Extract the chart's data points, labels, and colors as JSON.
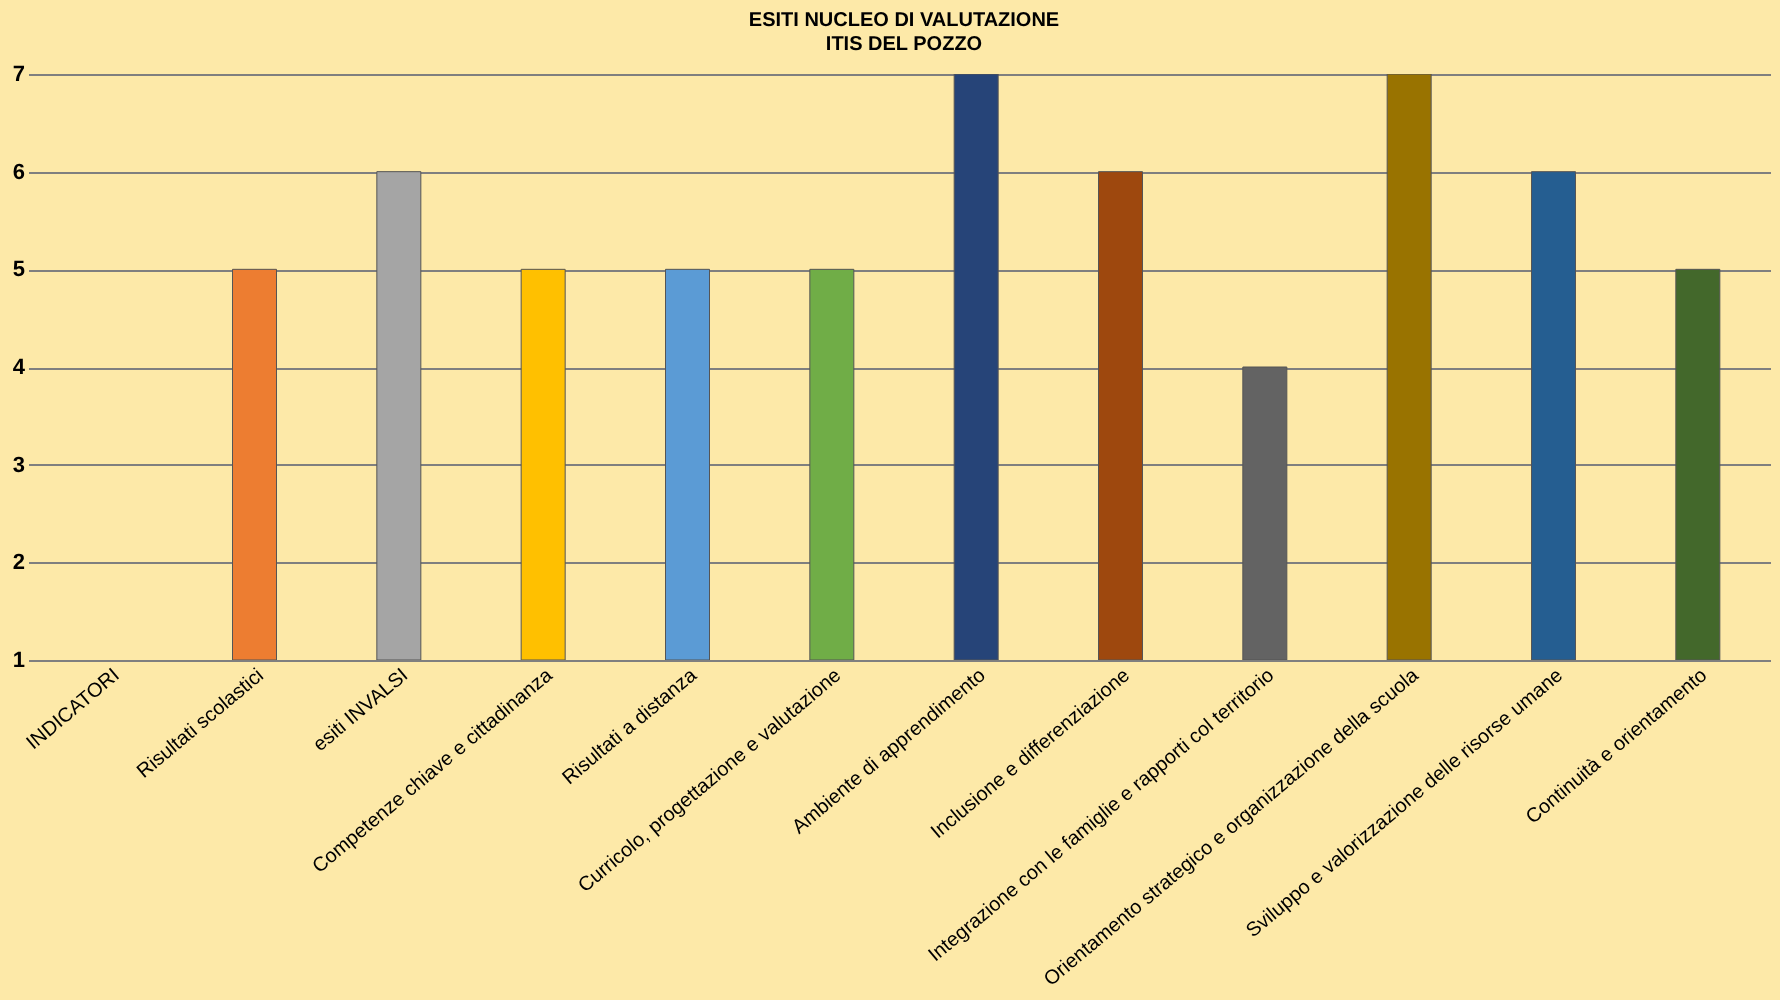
{
  "chart_data": {
    "type": "bar",
    "title": [
      "ESITI NUCLEO DI VALUTAZIONE",
      "ITIS DEL POZZO"
    ],
    "categories": [
      "INDICATORI",
      "Risultati scolastici",
      "esiti INVALSI",
      "Competenze chiave e cittadinanza",
      "Risultati a distanza",
      "Curricolo, progettazione e valutazione",
      "Ambiente di apprendimento",
      "Inclusione e differenziazione",
      "Integrazione con le famiglie e rapporti col territorio",
      "Orientamento strategico e organizzazione della scuola",
      "Sviluppo e valorizzazione delle risorse umane",
      "Continuità e orientamento"
    ],
    "values": [
      null,
      5,
      6,
      5,
      5,
      5,
      7,
      6,
      4,
      7,
      6,
      5
    ],
    "colors": [
      "#ed7d31",
      "#ed7d31",
      "#a5a5a5",
      "#ffc000",
      "#5b9bd5",
      "#70ad47",
      "#264478",
      "#9e480e",
      "#636363",
      "#997300",
      "#255e91",
      "#43682b"
    ],
    "ylim": [
      1,
      7
    ],
    "yticks": [
      1,
      2,
      3,
      4,
      5,
      6,
      7
    ],
    "grid": "y"
  }
}
